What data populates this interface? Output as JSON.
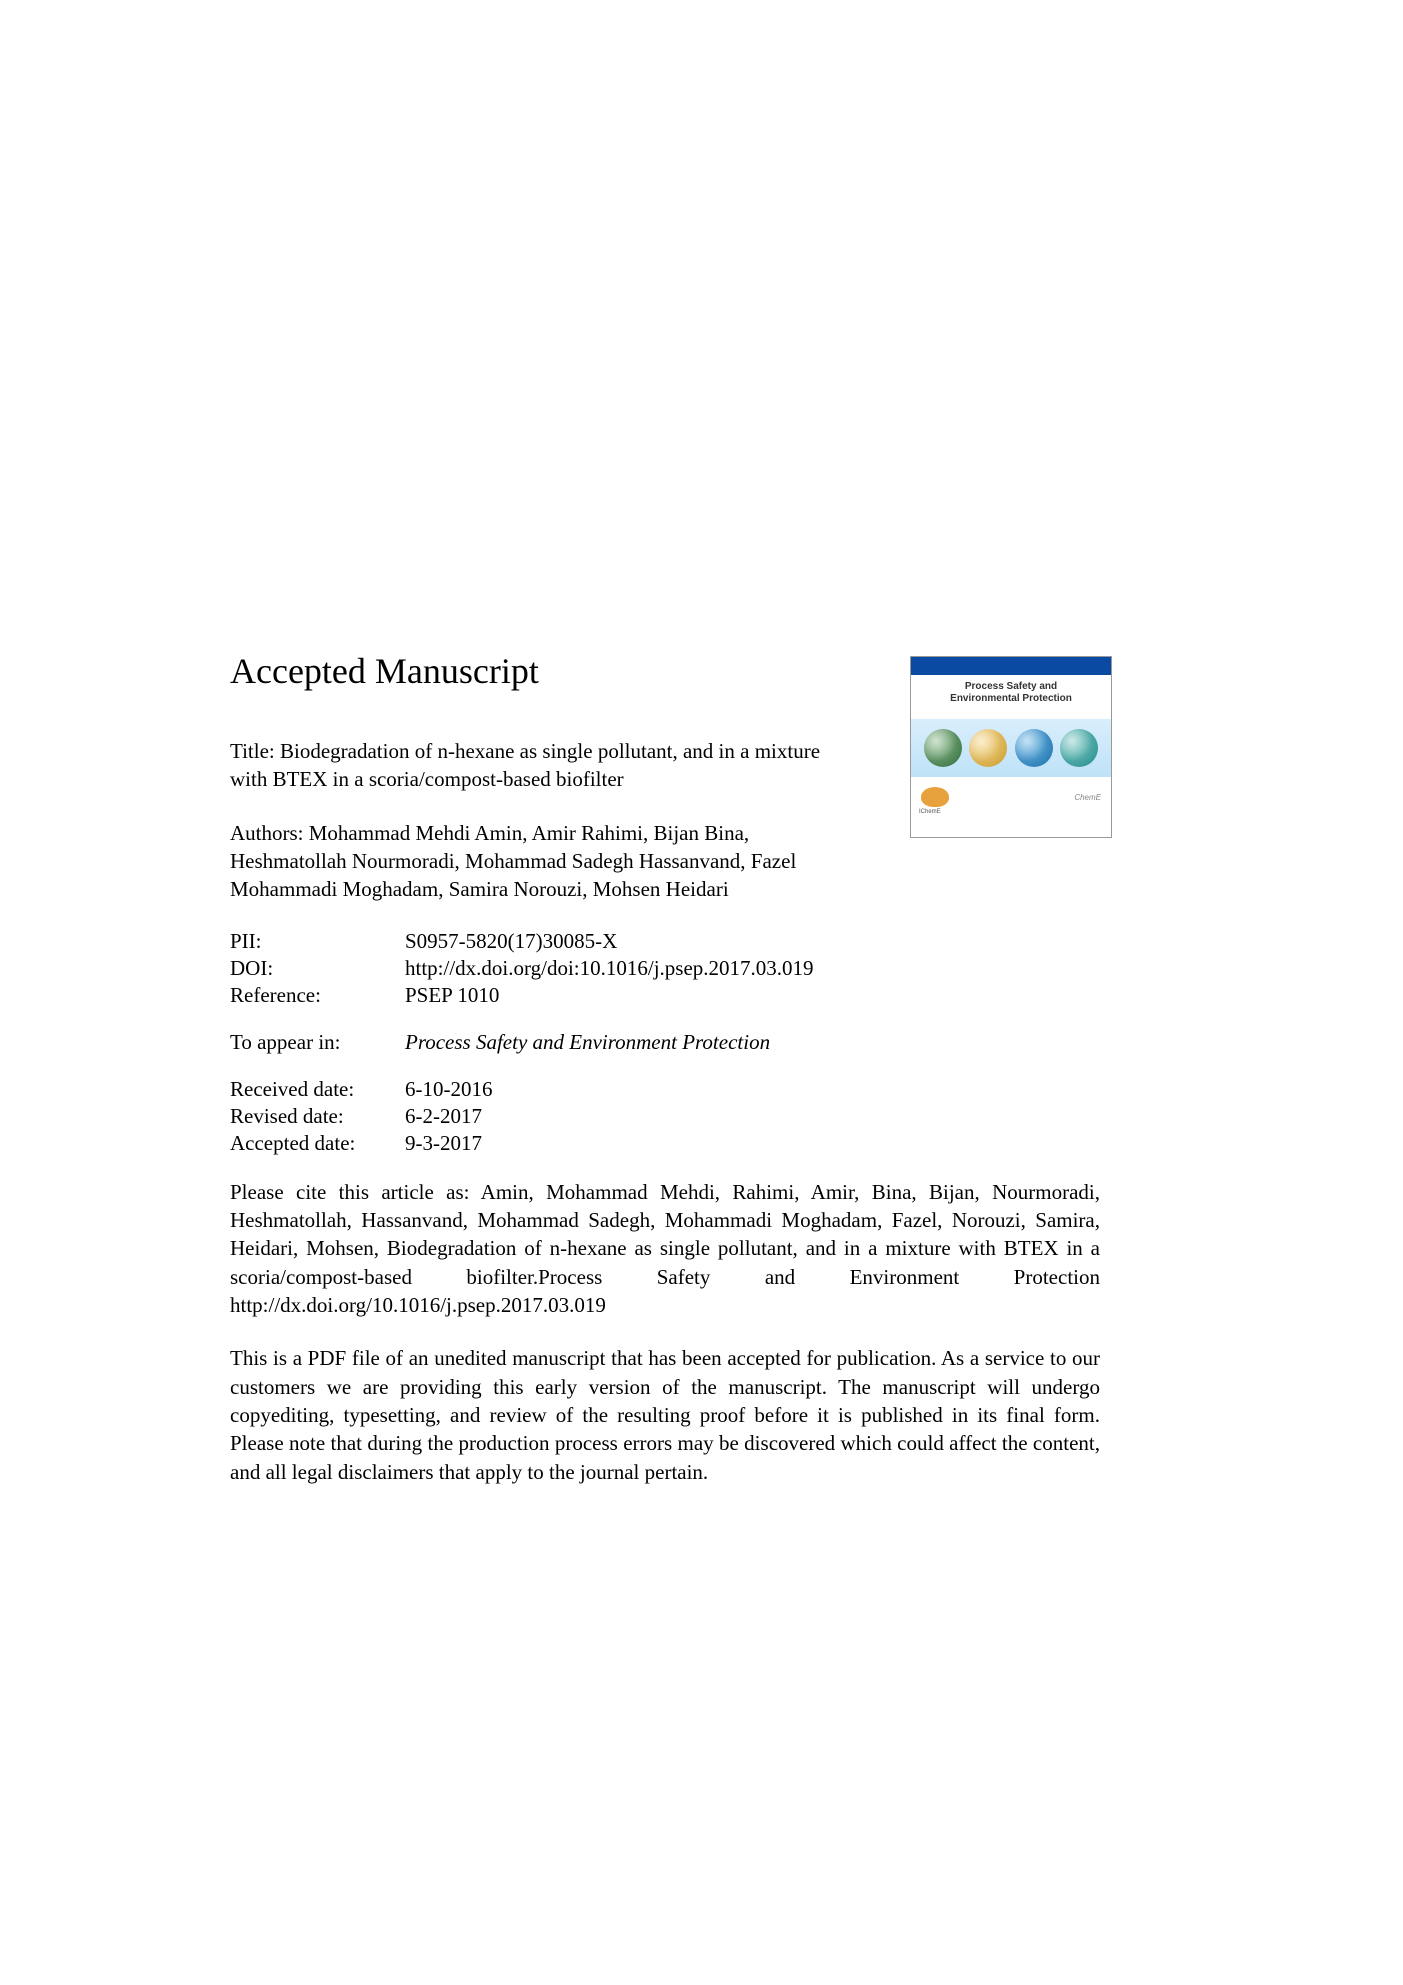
{
  "heading": "Accepted Manuscript",
  "title": "Title: Biodegradation of n-hexane as single pollutant, and in a mixture with BTEX in a scoria/compost-based biofilter",
  "authors": "Authors: Mohammad Mehdi Amin, Amir Rahimi, Bijan Bina, Heshmatollah Nourmoradi, Mohammad Sadegh Hassanvand, Fazel Mohammadi Moghadam, Samira Norouzi, Mohsen Heidari",
  "meta": {
    "pii_label": "PII:",
    "pii_value": "S0957-5820(17)30085-X",
    "doi_label": "DOI:",
    "doi_value": "http://dx.doi.org/doi:10.1016/j.psep.2017.03.019",
    "ref_label": "Reference:",
    "ref_value": "PSEP 1010",
    "appear_label": "To appear in:",
    "appear_value": "Process Safety and Environment Protection",
    "received_label": "Received date:",
    "received_value": "6-10-2016",
    "revised_label": "Revised date:",
    "revised_value": "6-2-2017",
    "accepted_label": "Accepted date:",
    "accepted_value": "9-3-2017"
  },
  "citation": "Please cite this article as: Amin, Mohammad Mehdi, Rahimi, Amir, Bina, Bijan, Nourmoradi, Heshmatollah, Hassanvand, Mohammad Sadegh, Mohammadi Moghadam, Fazel, Norouzi, Samira, Heidari, Mohsen, Biodegradation of n-hexane as single pollutant, and in a mixture with BTEX in a scoria/compost-based biofilter.Process Safety and Environment Protection http://dx.doi.org/10.1016/j.psep.2017.03.019",
  "disclaimer": "This is a PDF file of an unedited manuscript that has been accepted for publication. As a service to our customers we are providing this early version of the manuscript. The manuscript will undergo copyediting, typesetting, and review of the resulting proof before it is published in its final form. Please note that during the production process errors may be discovered which could affect the content, and all legal disclaimers that apply to the journal pertain.",
  "cover": {
    "journal_line1": "Process Safety and",
    "journal_line2": "Environmental Protection",
    "badge_text": "IChemE",
    "publisher": "ChemE",
    "colors": {
      "header": "#0a4aa3",
      "band_top": "#d9eefc",
      "band_bottom": "#bfe2f8",
      "globe1": "#2e6b3a",
      "globe2": "#c99a2e",
      "globe3": "#1a6ea8",
      "globe4": "#1f8a86",
      "badge": "#e8a23d"
    }
  }
}
